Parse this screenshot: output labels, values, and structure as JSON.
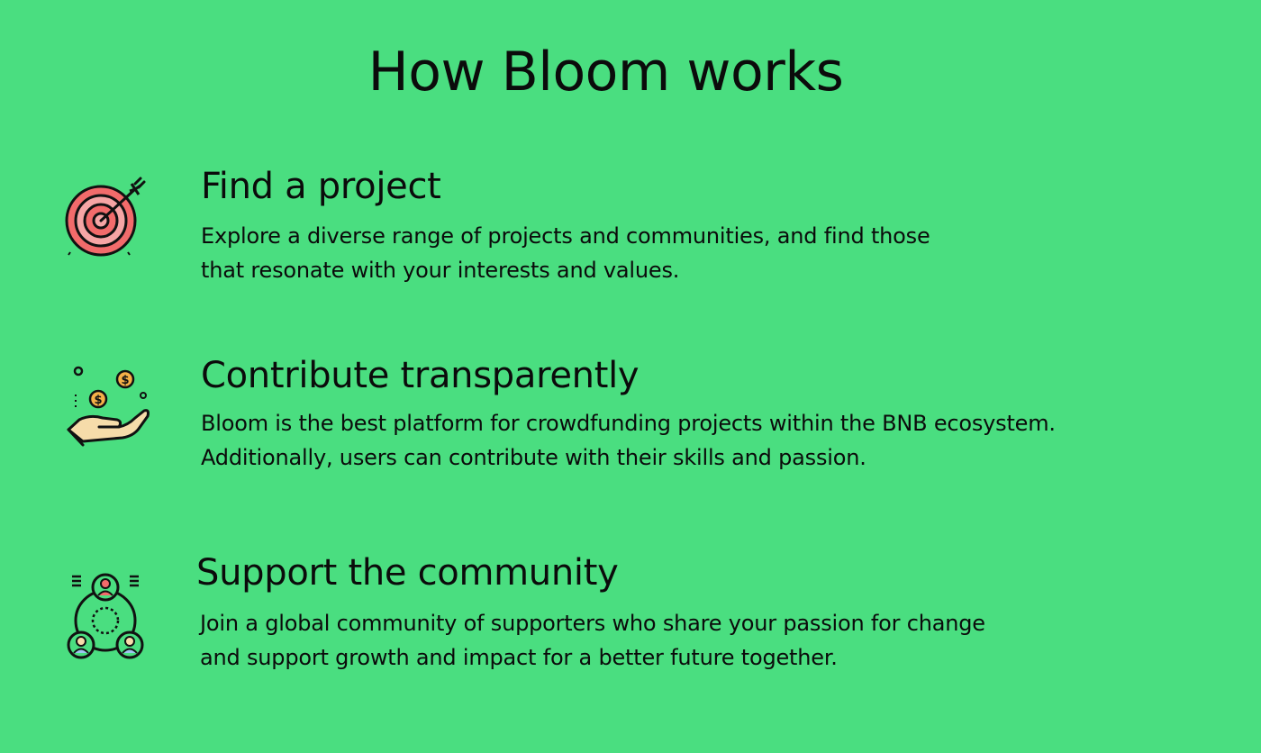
{
  "page": {
    "title": "How Bloom works",
    "background": "#4ade80"
  },
  "steps": [
    {
      "icon": "target-icon",
      "title": "Find a project",
      "lines": [
        "Explore a diverse range of projects and communities, and find those",
        "that resonate with your interests and values."
      ]
    },
    {
      "icon": "hand-coins-icon",
      "title": "Contribute transparently",
      "lines": [
        "Bloom is the best platform for crowdfunding projects within the BNB ecosystem.",
        "Additionally, users can contribute with their skills and passion."
      ]
    },
    {
      "icon": "community-icon",
      "title": "Support the community",
      "lines": [
        "Join a global community of supporters who share your passion for change",
        "and support growth and impact for a better future together."
      ]
    }
  ]
}
